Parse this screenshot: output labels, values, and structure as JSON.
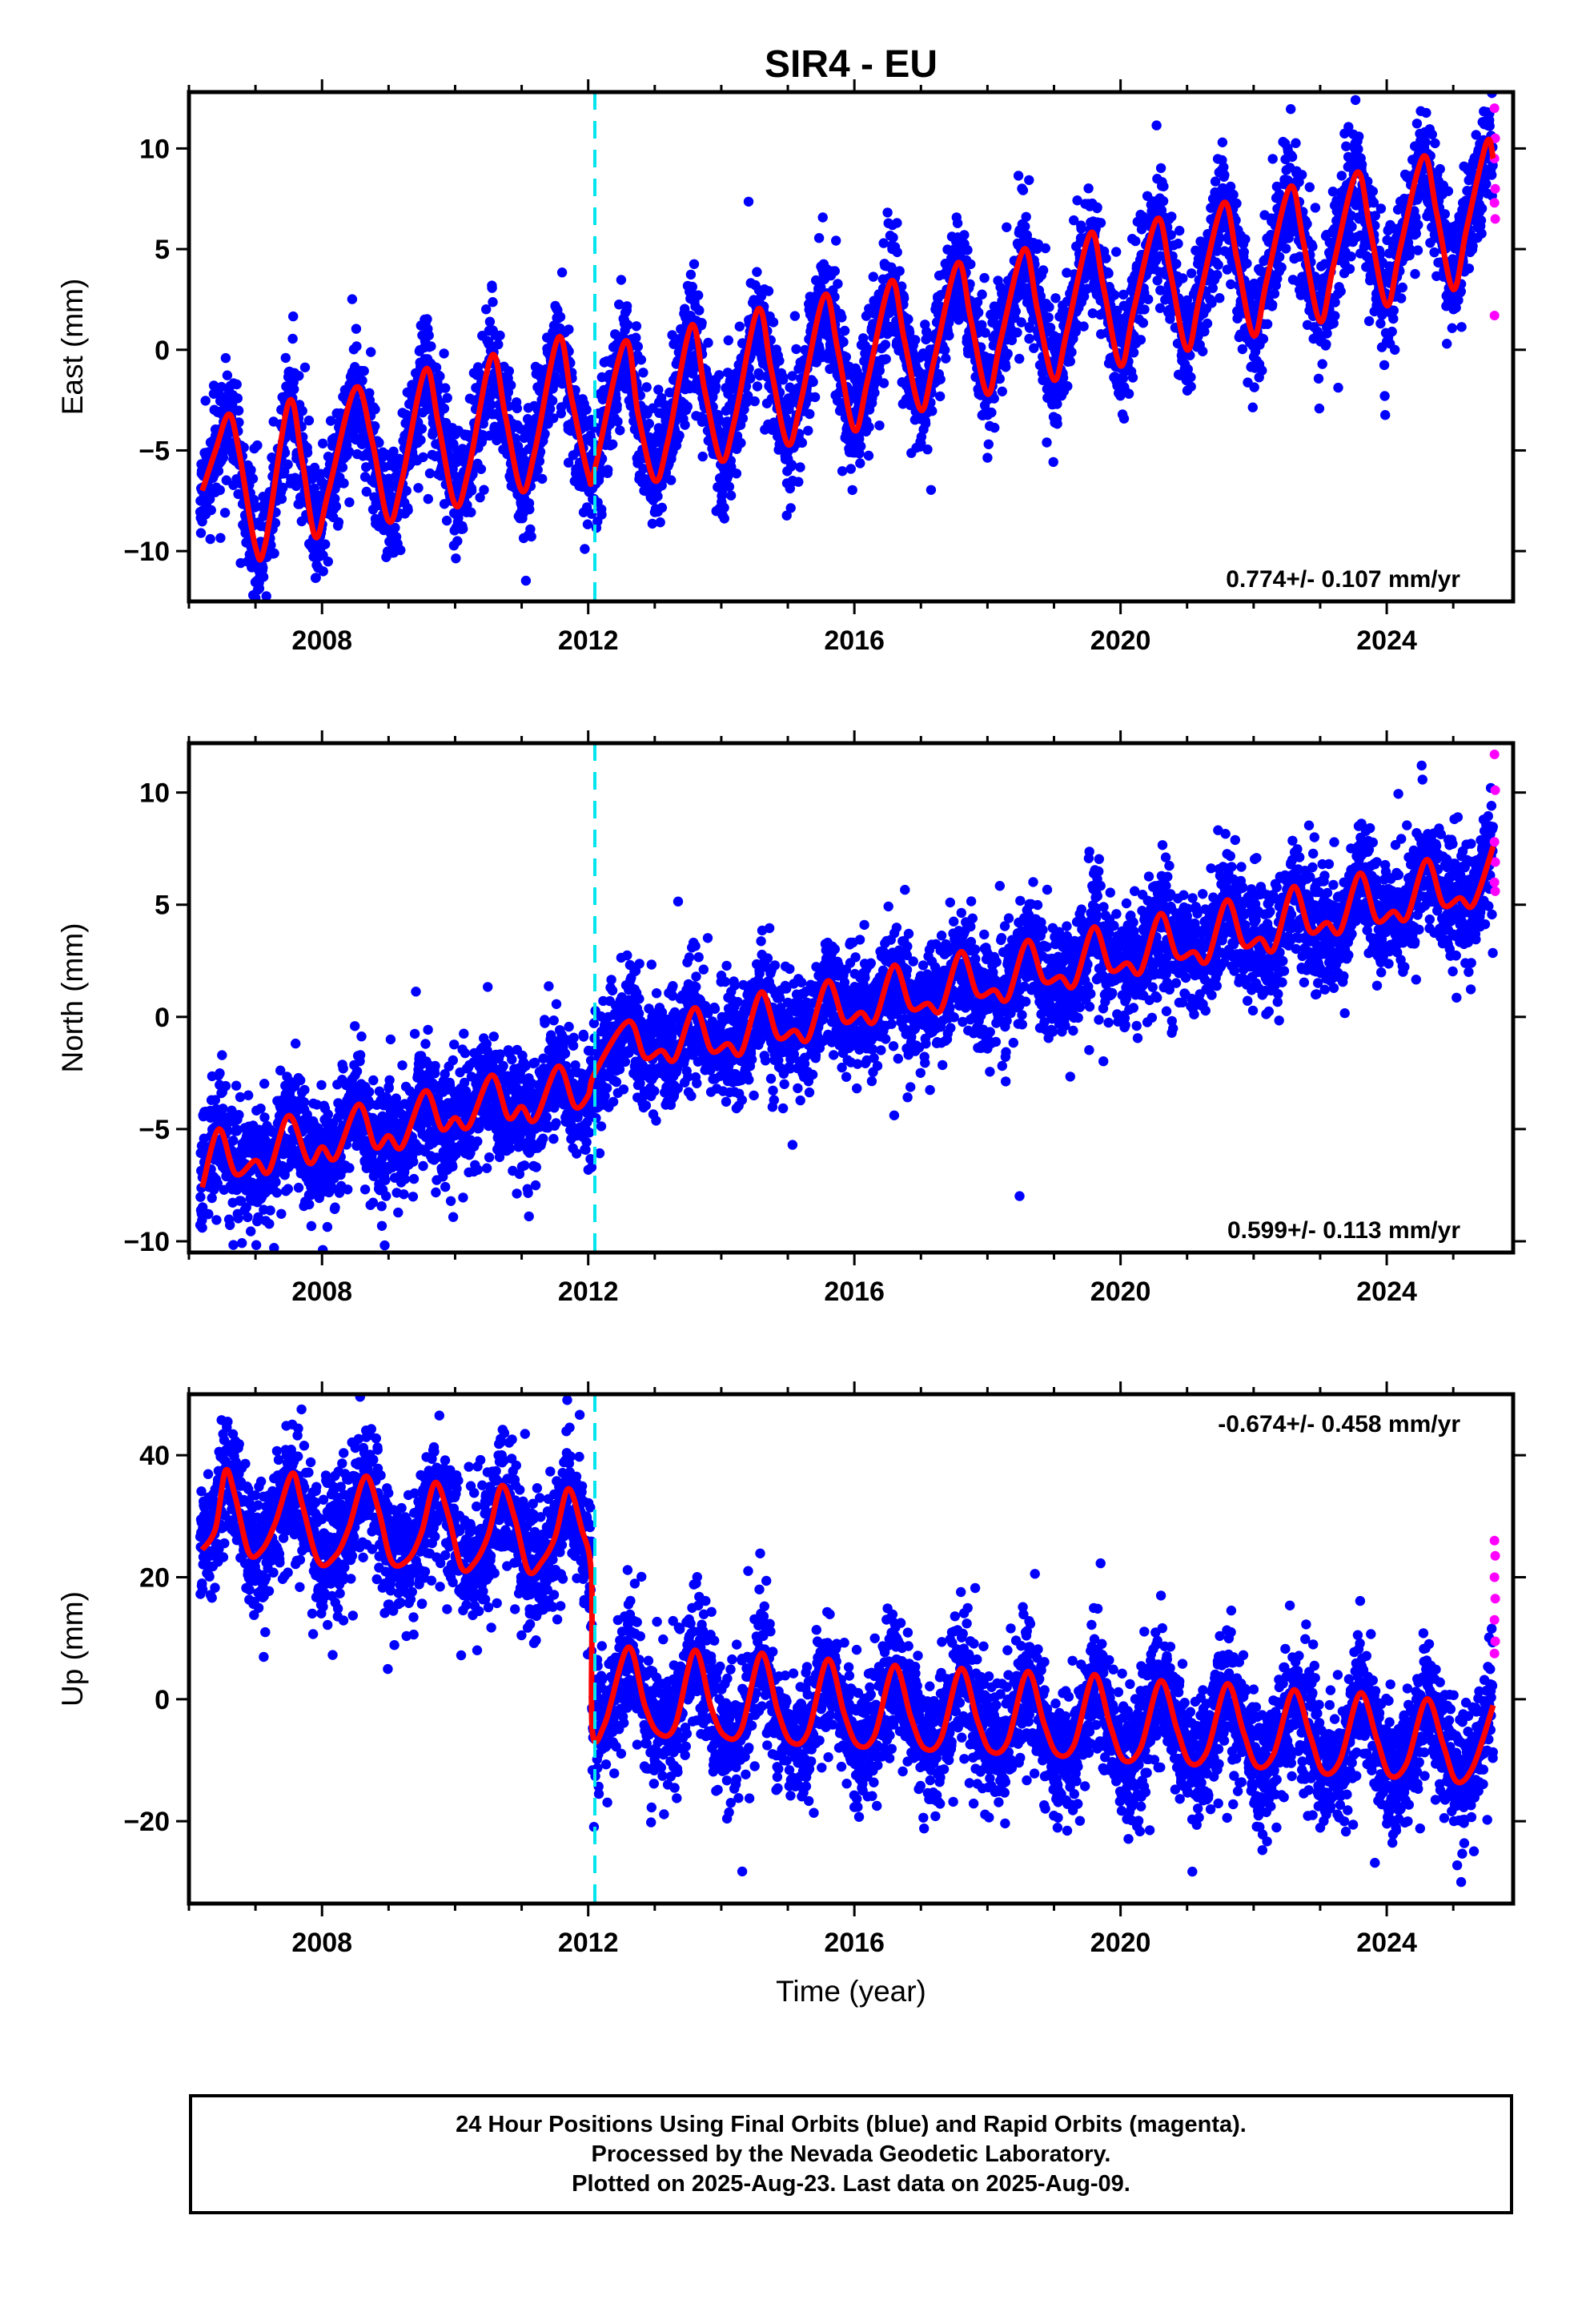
{
  "title": "SIR4 - EU",
  "footer": {
    "line1": "24 Hour Positions Using Final Orbits (blue) and Rapid Orbits (magenta).",
    "line2": "Processed by the Nevada Geodetic Laboratory.",
    "line3": "Plotted on 2025-Aug-23. Last data on 2025-Aug-09."
  },
  "colors": {
    "final_orbits": "#0000ff",
    "rapid_orbits": "#ff00ff",
    "model_fit": "#ff0000",
    "equipment_change": "#00e5ee",
    "frame": "#000000"
  },
  "chart_data": [
    {
      "type": "scatter",
      "ylabel": "East (mm)",
      "xlim": [
        2006.0,
        2025.9
      ],
      "ylim": [
        -12.5,
        12.8
      ],
      "xticks": [
        2008,
        2012,
        2016,
        2020,
        2024
      ],
      "yticks": [
        -10,
        -5,
        0,
        5,
        10
      ],
      "rate_label": "0.774+/- 0.107 mm/yr",
      "rate_position": "bottom-right",
      "discontinuity_x": 2012.1,
      "model": {
        "fit": [
          [
            2006.2,
            -7.0
          ],
          [
            2006.4,
            -5.0
          ],
          [
            2006.6,
            -3.2
          ],
          [
            2006.75,
            -5.0
          ],
          [
            2007.0,
            -9.8
          ],
          [
            2007.15,
            -9.6
          ],
          [
            2007.5,
            -2.6
          ],
          [
            2007.7,
            -5.5
          ],
          [
            2007.9,
            -9.3
          ],
          [
            2008.1,
            -7.0
          ],
          [
            2008.5,
            -1.9
          ],
          [
            2008.75,
            -4.5
          ],
          [
            2009.0,
            -8.5
          ],
          [
            2009.2,
            -6.5
          ],
          [
            2009.55,
            -1.0
          ],
          [
            2009.75,
            -3.7
          ],
          [
            2010.0,
            -7.7
          ],
          [
            2010.2,
            -6.0
          ],
          [
            2010.55,
            -0.3
          ],
          [
            2010.75,
            -3.2
          ],
          [
            2011.0,
            -7.0
          ],
          [
            2011.2,
            -5.0
          ],
          [
            2011.55,
            0.6
          ],
          [
            2011.75,
            -2.4
          ],
          [
            2012.0,
            -6.2
          ],
          [
            2012.1,
            -5.9
          ],
          [
            2012.55,
            0.4
          ],
          [
            2012.75,
            -3.2
          ],
          [
            2013.0,
            -6.5
          ],
          [
            2013.2,
            -4.5
          ],
          [
            2013.55,
            1.2
          ],
          [
            2013.75,
            -2.0
          ],
          [
            2014.0,
            -5.5
          ],
          [
            2014.2,
            -3.5
          ],
          [
            2014.55,
            2.0
          ],
          [
            2014.75,
            -1.0
          ],
          [
            2015.0,
            -4.7
          ],
          [
            2015.2,
            -2.5
          ],
          [
            2015.55,
            2.7
          ],
          [
            2015.75,
            0.0
          ],
          [
            2016.0,
            -4.0
          ],
          [
            2016.2,
            -1.5
          ],
          [
            2016.55,
            3.4
          ],
          [
            2016.75,
            0.5
          ],
          [
            2017.0,
            -3.0
          ],
          [
            2017.2,
            -0.5
          ],
          [
            2017.55,
            4.3
          ],
          [
            2017.75,
            1.5
          ],
          [
            2018.0,
            -2.2
          ],
          [
            2018.2,
            0.5
          ],
          [
            2018.55,
            5.0
          ],
          [
            2018.75,
            2.0
          ],
          [
            2019.0,
            -1.5
          ],
          [
            2019.2,
            1.0
          ],
          [
            2019.55,
            5.8
          ],
          [
            2019.75,
            3.0
          ],
          [
            2020.0,
            -0.8
          ],
          [
            2020.2,
            2.0
          ],
          [
            2020.55,
            6.5
          ],
          [
            2020.75,
            3.8
          ],
          [
            2021.0,
            0.0
          ],
          [
            2021.2,
            2.8
          ],
          [
            2021.55,
            7.3
          ],
          [
            2021.75,
            4.5
          ],
          [
            2022.0,
            0.7
          ],
          [
            2022.2,
            3.5
          ],
          [
            2022.55,
            8.1
          ],
          [
            2022.75,
            5.3
          ],
          [
            2023.0,
            1.4
          ],
          [
            2023.2,
            4.2
          ],
          [
            2023.55,
            8.8
          ],
          [
            2023.75,
            6.0
          ],
          [
            2024.0,
            2.2
          ],
          [
            2024.2,
            5.0
          ],
          [
            2024.55,
            9.6
          ],
          [
            2024.75,
            6.8
          ],
          [
            2025.0,
            3.0
          ],
          [
            2025.2,
            6.0
          ],
          [
            2025.5,
            10.3
          ],
          [
            2025.6,
            9.5
          ]
        ]
      },
      "scatter": {
        "noise": 1.5,
        "seed": 11,
        "step": 0.0033
      },
      "rapid": [
        [
          2025.62,
          12.0
        ],
        [
          2025.63,
          10.5
        ],
        [
          2025.62,
          9.5
        ],
        [
          2025.63,
          8.0
        ],
        [
          2025.62,
          7.3
        ],
        [
          2025.63,
          6.5
        ],
        [
          2025.62,
          1.7
        ]
      ]
    },
    {
      "type": "scatter",
      "ylabel": "North (mm)",
      "xlim": [
        2006.0,
        2025.9
      ],
      "ylim": [
        -10.5,
        12.2
      ],
      "xticks": [
        2008,
        2012,
        2016,
        2020,
        2024
      ],
      "yticks": [
        -10,
        -5,
        0,
        5,
        10
      ],
      "rate_label": "0.599+/- 0.113 mm/yr",
      "rate_position": "bottom-right",
      "discontinuity_x": 2012.1,
      "model": {
        "fit": [
          [
            2006.2,
            -7.6
          ],
          [
            2006.45,
            -5.0
          ],
          [
            2006.7,
            -7.0
          ],
          [
            2007.0,
            -6.4
          ],
          [
            2007.2,
            -6.9
          ],
          [
            2007.5,
            -4.4
          ],
          [
            2007.8,
            -6.5
          ],
          [
            2008.0,
            -5.8
          ],
          [
            2008.2,
            -6.3
          ],
          [
            2008.55,
            -3.9
          ],
          [
            2008.8,
            -5.8
          ],
          [
            2009.0,
            -5.3
          ],
          [
            2009.2,
            -5.8
          ],
          [
            2009.55,
            -3.3
          ],
          [
            2009.8,
            -5.0
          ],
          [
            2010.0,
            -4.5
          ],
          [
            2010.2,
            -4.9
          ],
          [
            2010.55,
            -2.6
          ],
          [
            2010.8,
            -4.5
          ],
          [
            2011.0,
            -4.0
          ],
          [
            2011.2,
            -4.6
          ],
          [
            2011.55,
            -2.2
          ],
          [
            2011.8,
            -4.0
          ],
          [
            2012.0,
            -3.5
          ],
          [
            2012.1,
            -2.5
          ],
          [
            2012.6,
            -0.2
          ],
          [
            2012.85,
            -1.8
          ],
          [
            2013.1,
            -1.5
          ],
          [
            2013.3,
            -1.9
          ],
          [
            2013.6,
            0.4
          ],
          [
            2013.85,
            -1.5
          ],
          [
            2014.1,
            -1.2
          ],
          [
            2014.3,
            -1.6
          ],
          [
            2014.6,
            1.1
          ],
          [
            2014.85,
            -0.9
          ],
          [
            2015.1,
            -0.6
          ],
          [
            2015.3,
            -1.0
          ],
          [
            2015.6,
            1.6
          ],
          [
            2015.85,
            -0.2
          ],
          [
            2016.1,
            0.2
          ],
          [
            2016.3,
            -0.2
          ],
          [
            2016.6,
            2.3
          ],
          [
            2016.85,
            0.4
          ],
          [
            2017.1,
            0.6
          ],
          [
            2017.3,
            0.3
          ],
          [
            2017.6,
            2.9
          ],
          [
            2017.85,
            1.0
          ],
          [
            2018.1,
            1.2
          ],
          [
            2018.3,
            0.8
          ],
          [
            2018.6,
            3.4
          ],
          [
            2018.85,
            1.6
          ],
          [
            2019.1,
            1.8
          ],
          [
            2019.3,
            1.4
          ],
          [
            2019.6,
            4.0
          ],
          [
            2019.85,
            2.1
          ],
          [
            2020.1,
            2.4
          ],
          [
            2020.3,
            2.0
          ],
          [
            2020.6,
            4.6
          ],
          [
            2020.85,
            2.7
          ],
          [
            2021.1,
            2.9
          ],
          [
            2021.3,
            2.5
          ],
          [
            2021.6,
            5.2
          ],
          [
            2021.85,
            3.2
          ],
          [
            2022.1,
            3.5
          ],
          [
            2022.3,
            3.0
          ],
          [
            2022.6,
            5.8
          ],
          [
            2022.85,
            3.8
          ],
          [
            2023.1,
            4.2
          ],
          [
            2023.3,
            3.8
          ],
          [
            2023.6,
            6.4
          ],
          [
            2023.85,
            4.3
          ],
          [
            2024.1,
            4.7
          ],
          [
            2024.3,
            4.4
          ],
          [
            2024.6,
            7.0
          ],
          [
            2024.85,
            5.0
          ],
          [
            2025.1,
            5.3
          ],
          [
            2025.3,
            5.0
          ],
          [
            2025.6,
            7.6
          ]
        ]
      },
      "scatter": {
        "noise": 1.35,
        "seed": 23,
        "step": 0.0033
      },
      "rapid": [
        [
          2025.62,
          11.7
        ],
        [
          2025.63,
          10.1
        ],
        [
          2025.62,
          7.8
        ],
        [
          2025.63,
          6.9
        ],
        [
          2025.62,
          6.0
        ],
        [
          2025.63,
          5.6
        ]
      ]
    },
    {
      "type": "scatter",
      "xlabel": "Time (year)",
      "ylabel": "Up (mm)",
      "xlim": [
        2006.0,
        2025.9
      ],
      "ylim": [
        -33.5,
        50.0
      ],
      "xticks": [
        2008,
        2012,
        2016,
        2020,
        2024
      ],
      "yticks": [
        -20,
        0,
        20,
        40
      ],
      "rate_label": "-0.674+/- 0.458 mm/yr",
      "rate_position": "top-right",
      "discontinuity_x": 2012.1,
      "model": {
        "fit": [
          [
            2006.2,
            24.5
          ],
          [
            2006.4,
            28.0
          ],
          [
            2006.55,
            37.5
          ],
          [
            2006.7,
            33.0
          ],
          [
            2006.9,
            24.0
          ],
          [
            2007.1,
            24.5
          ],
          [
            2007.3,
            29.0
          ],
          [
            2007.55,
            37.0
          ],
          [
            2007.7,
            32.0
          ],
          [
            2007.95,
            22.5
          ],
          [
            2008.2,
            23.5
          ],
          [
            2008.4,
            28.0
          ],
          [
            2008.65,
            36.5
          ],
          [
            2008.85,
            31.0
          ],
          [
            2009.05,
            22.5
          ],
          [
            2009.3,
            23.0
          ],
          [
            2009.5,
            27.5
          ],
          [
            2009.7,
            35.5
          ],
          [
            2009.9,
            30.0
          ],
          [
            2010.1,
            21.5
          ],
          [
            2010.3,
            22.5
          ],
          [
            2010.5,
            27.0
          ],
          [
            2010.7,
            35.0
          ],
          [
            2010.9,
            29.5
          ],
          [
            2011.1,
            21.0
          ],
          [
            2011.3,
            22.5
          ],
          [
            2011.5,
            26.5
          ],
          [
            2011.7,
            34.5
          ],
          [
            2011.9,
            28.0
          ],
          [
            2012.05,
            20.0
          ],
          [
            2012.06,
            -5.0
          ],
          [
            2012.25,
            -4.0
          ],
          [
            2012.6,
            8.5
          ],
          [
            2012.85,
            -1.0
          ],
          [
            2013.05,
            -5.5
          ],
          [
            2013.3,
            -4.5
          ],
          [
            2013.6,
            8.0
          ],
          [
            2013.85,
            -1.5
          ],
          [
            2014.05,
            -6.0
          ],
          [
            2014.3,
            -5.0
          ],
          [
            2014.6,
            7.5
          ],
          [
            2014.85,
            -2.0
          ],
          [
            2015.05,
            -7.0
          ],
          [
            2015.3,
            -5.5
          ],
          [
            2015.6,
            6.5
          ],
          [
            2015.85,
            -2.5
          ],
          [
            2016.05,
            -7.5
          ],
          [
            2016.3,
            -6.0
          ],
          [
            2016.6,
            5.5
          ],
          [
            2016.85,
            -3.0
          ],
          [
            2017.05,
            -8.0
          ],
          [
            2017.3,
            -6.5
          ],
          [
            2017.6,
            5.0
          ],
          [
            2017.85,
            -3.5
          ],
          [
            2018.05,
            -8.5
          ],
          [
            2018.3,
            -7.0
          ],
          [
            2018.6,
            4.5
          ],
          [
            2018.85,
            -4.0
          ],
          [
            2019.05,
            -9.0
          ],
          [
            2019.3,
            -7.5
          ],
          [
            2019.6,
            4.0
          ],
          [
            2019.85,
            -4.5
          ],
          [
            2020.05,
            -10.0
          ],
          [
            2020.3,
            -8.0
          ],
          [
            2020.6,
            3.0
          ],
          [
            2020.85,
            -5.0
          ],
          [
            2021.05,
            -10.5
          ],
          [
            2021.3,
            -8.5
          ],
          [
            2021.6,
            2.5
          ],
          [
            2021.85,
            -5.5
          ],
          [
            2022.05,
            -11.0
          ],
          [
            2022.3,
            -9.0
          ],
          [
            2022.6,
            1.5
          ],
          [
            2022.85,
            -6.0
          ],
          [
            2023.05,
            -12.0
          ],
          [
            2023.3,
            -10.0
          ],
          [
            2023.6,
            1.0
          ],
          [
            2023.85,
            -6.5
          ],
          [
            2024.05,
            -12.5
          ],
          [
            2024.3,
            -10.5
          ],
          [
            2024.6,
            0.0
          ],
          [
            2024.85,
            -7.5
          ],
          [
            2025.05,
            -13.5
          ],
          [
            2025.3,
            -11.0
          ],
          [
            2025.6,
            -1.0
          ]
        ]
      },
      "scatter": {
        "noise": 5.5,
        "seed": 37,
        "step": 0.0033
      },
      "rapid": [
        [
          2025.62,
          26.0
        ],
        [
          2025.63,
          23.5
        ],
        [
          2025.62,
          20.0
        ],
        [
          2025.63,
          16.5
        ],
        [
          2025.62,
          13.0
        ],
        [
          2025.63,
          9.5
        ],
        [
          2025.62,
          7.5
        ]
      ]
    }
  ]
}
